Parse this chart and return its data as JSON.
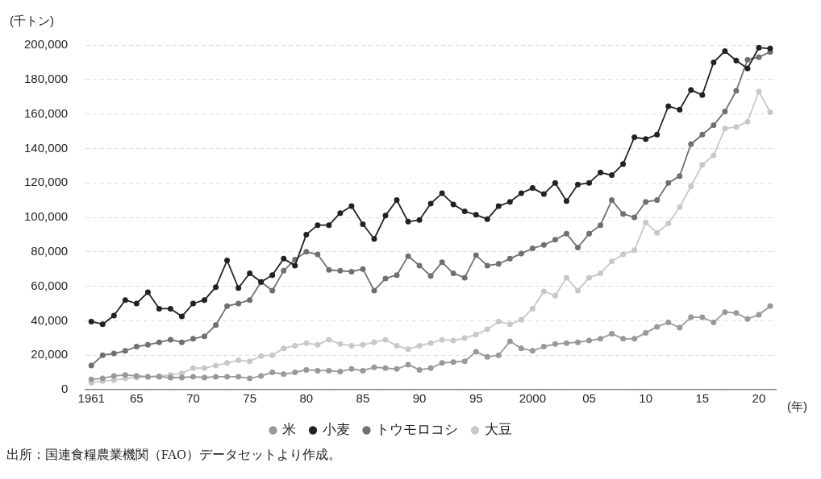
{
  "chart_data": {
    "type": "line",
    "xlabel": "(年)",
    "ylabel": "(千トン)",
    "x": [
      1961,
      1962,
      1963,
      1964,
      1965,
      1966,
      1967,
      1968,
      1969,
      1970,
      1971,
      1972,
      1973,
      1974,
      1975,
      1976,
      1977,
      1978,
      1979,
      1980,
      1981,
      1982,
      1983,
      1984,
      1985,
      1986,
      1987,
      1988,
      1989,
      1990,
      1991,
      1992,
      1993,
      1994,
      1995,
      1996,
      1997,
      1998,
      1999,
      2000,
      2001,
      2002,
      2003,
      2004,
      2005,
      2006,
      2007,
      2008,
      2009,
      2010,
      2011,
      2012,
      2013,
      2014,
      2015,
      2016,
      2017,
      2018,
      2019,
      2020,
      2021
    ],
    "series": [
      {
        "name": "米",
        "color": "#999999",
        "values": [
          6000,
          6500,
          8000,
          8500,
          8000,
          7500,
          7500,
          7000,
          7000,
          7500,
          7000,
          7500,
          7500,
          7500,
          6500,
          8000,
          10000,
          9000,
          10000,
          11500,
          11000,
          11000,
          10500,
          12000,
          11000,
          13000,
          12500,
          12000,
          14500,
          11500,
          12500,
          15500,
          16000,
          16500,
          22000,
          19000,
          20000,
          28000,
          24000,
          22500,
          25000,
          26500,
          27000,
          27500,
          28500,
          29500,
          32500,
          29500,
          29500,
          33000,
          36500,
          39000,
          36000,
          42000,
          42000,
          39000,
          45000,
          44500,
          41000,
          43500,
          48500
        ]
      },
      {
        "name": "小麦",
        "color": "#222222",
        "values": [
          39500,
          38000,
          43000,
          52000,
          50000,
          56500,
          47000,
          47000,
          42500,
          50000,
          52000,
          59500,
          75000,
          59000,
          67500,
          62500,
          66500,
          76000,
          72000,
          90000,
          95500,
          95500,
          102500,
          106500,
          96000,
          87500,
          101000,
          110000,
          97500,
          98500,
          108000,
          114000,
          107500,
          103500,
          101500,
          99000,
          106500,
          109000,
          114000,
          117000,
          113500,
          120000,
          109500,
          119000,
          120000,
          126000,
          124500,
          131000,
          146500,
          145500,
          148000,
          164500,
          162500,
          174000,
          171000,
          190000,
          196500,
          191000,
          186500,
          198500,
          198000
        ]
      },
      {
        "name": "トウモロコシ",
        "color": "#707070",
        "values": [
          14000,
          20000,
          21000,
          22500,
          25000,
          26000,
          27500,
          29000,
          27500,
          29500,
          31000,
          37500,
          48500,
          50000,
          52000,
          62500,
          57500,
          69000,
          75500,
          80000,
          78500,
          69500,
          69000,
          68500,
          70000,
          57500,
          64500,
          66500,
          77500,
          72000,
          66000,
          74000,
          67500,
          65000,
          78000,
          72000,
          73000,
          76000,
          79000,
          82000,
          84000,
          87000,
          90500,
          82500,
          90500,
          95500,
          110000,
          102000,
          100000,
          109000,
          110000,
          120000,
          124000,
          142500,
          148000,
          153500,
          161500,
          173500,
          191500,
          193000,
          196000
        ]
      },
      {
        "name": "大豆",
        "color": "#c8c8c8",
        "values": [
          4000,
          5000,
          5500,
          6500,
          7000,
          7500,
          8000,
          8500,
          9500,
          12500,
          12500,
          14000,
          15500,
          17000,
          16500,
          19500,
          20000,
          24000,
          25500,
          27000,
          26000,
          29000,
          26500,
          25500,
          26000,
          27500,
          29000,
          25500,
          23500,
          25500,
          27000,
          29000,
          28500,
          30000,
          32000,
          35000,
          39500,
          38000,
          40500,
          47000,
          57000,
          54500,
          65000,
          57500,
          65000,
          67500,
          74500,
          78500,
          81000,
          97000,
          91000,
          96500,
          106000,
          118000,
          130500,
          136000,
          151500,
          152500,
          155500,
          173000,
          161000
        ]
      }
    ],
    "xlim": [
      1960.5,
      2021.5
    ],
    "xticks": [
      {
        "value": 1961,
        "label": "1961"
      },
      {
        "value": 1965,
        "label": "65"
      },
      {
        "value": 1970,
        "label": "70"
      },
      {
        "value": 1975,
        "label": "75"
      },
      {
        "value": 1980,
        "label": "80"
      },
      {
        "value": 1985,
        "label": "85"
      },
      {
        "value": 1990,
        "label": "90"
      },
      {
        "value": 1995,
        "label": "95"
      },
      {
        "value": 2000,
        "label": "2000"
      },
      {
        "value": 2005,
        "label": "05"
      },
      {
        "value": 2010,
        "label": "10"
      },
      {
        "value": 2015,
        "label": "15"
      },
      {
        "value": 2020,
        "label": "20"
      }
    ],
    "ylim": [
      0,
      200000
    ],
    "yticks": [
      {
        "value": 0,
        "label": "0"
      },
      {
        "value": 20000,
        "label": "20,000"
      },
      {
        "value": 40000,
        "label": "40,000"
      },
      {
        "value": 60000,
        "label": "60,000"
      },
      {
        "value": 80000,
        "label": "80,000"
      },
      {
        "value": 100000,
        "label": "100,000"
      },
      {
        "value": 120000,
        "label": "120,000"
      },
      {
        "value": 140000,
        "label": "140,000"
      },
      {
        "value": 160000,
        "label": "160,000"
      },
      {
        "value": 180000,
        "label": "180,000"
      },
      {
        "value": 200000,
        "label": "200,000"
      }
    ],
    "grid": "y",
    "legend": "bottom",
    "marker": "circle",
    "line_style": "solid",
    "annotations": [
      "出所：国連食糧農業機関（FAO）データセットより作成。"
    ]
  }
}
